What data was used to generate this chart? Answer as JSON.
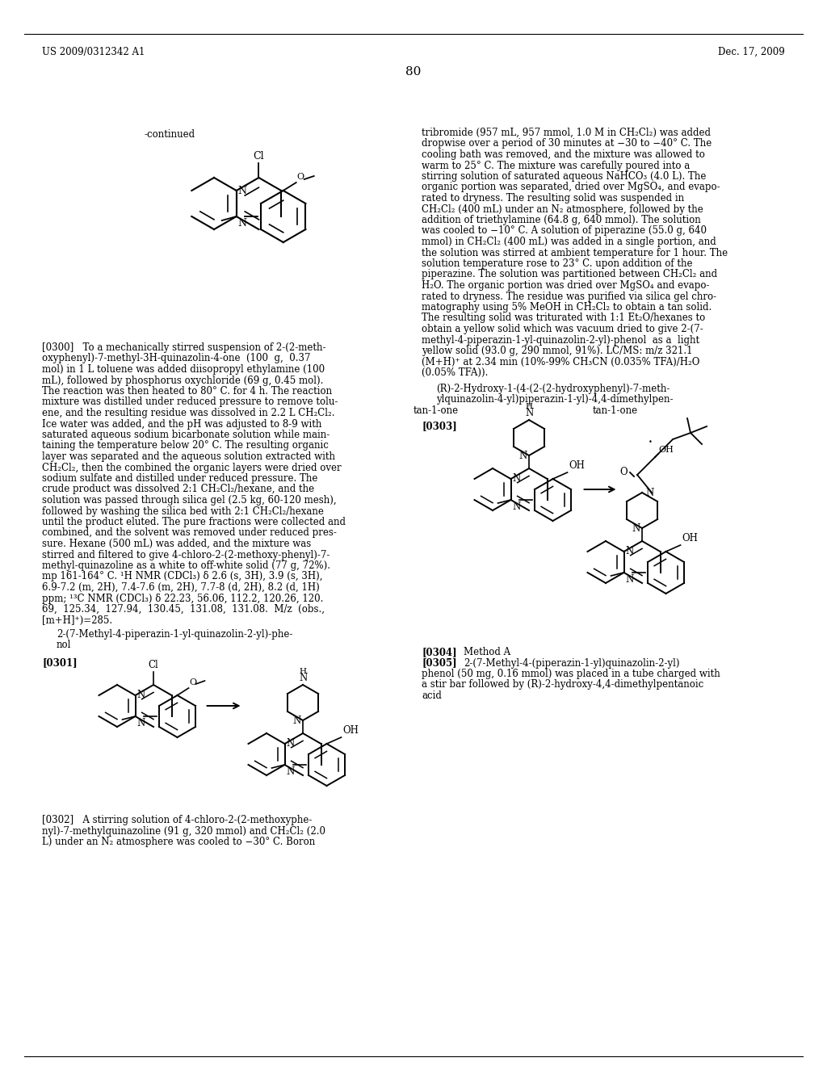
{
  "bg": "#ffffff",
  "header_left": "US 2009/0312342 A1",
  "header_right": "Dec. 17, 2009",
  "page_num": "80"
}
